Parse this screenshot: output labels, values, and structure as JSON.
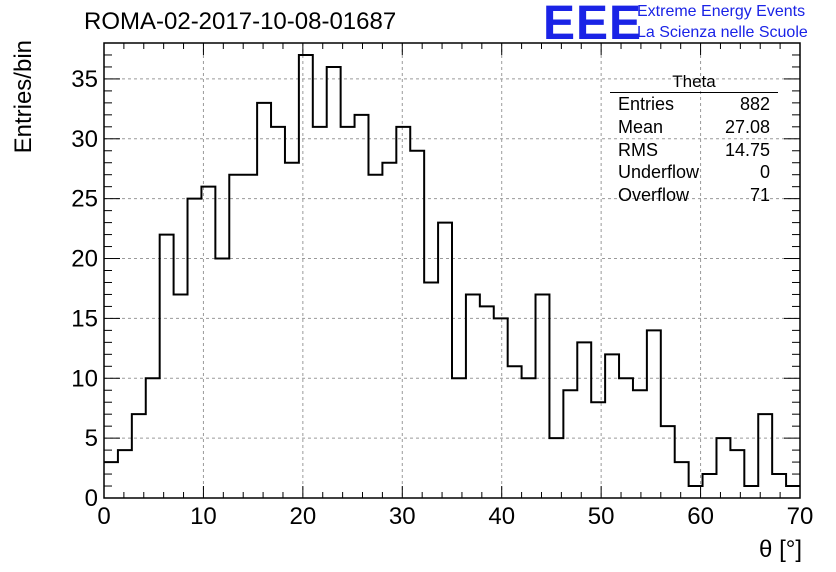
{
  "chart_data": {
    "type": "bar",
    "title": "ROMA-02-2017-10-08-01687",
    "xlabel": "θ [°]",
    "ylabel": "Entries/bin",
    "xlim": [
      0,
      70
    ],
    "ylim": [
      0,
      38
    ],
    "bin_width": 1.4,
    "x_ticks": [
      0,
      10,
      20,
      30,
      40,
      50,
      60,
      70
    ],
    "y_ticks": [
      0,
      5,
      10,
      15,
      20,
      25,
      30,
      35
    ],
    "grid": true,
    "values": [
      3,
      4,
      7,
      10,
      22,
      17,
      25,
      26,
      20,
      27,
      27,
      33,
      31,
      28,
      37,
      31,
      36,
      31,
      32,
      27,
      28,
      31,
      29,
      18,
      23,
      10,
      17,
      16,
      15,
      11,
      10,
      17,
      5,
      9,
      13,
      8,
      12,
      10,
      9,
      14,
      6,
      3,
      1,
      2,
      5,
      4,
      1,
      7,
      2,
      1
    ]
  },
  "stats_box": {
    "title": "Theta",
    "rows": [
      {
        "label": "Entries",
        "value": "882"
      },
      {
        "label": "Mean",
        "value": "27.08"
      },
      {
        "label": "RMS",
        "value": "14.75"
      },
      {
        "label": "Underflow",
        "value": "0"
      },
      {
        "label": "Overflow",
        "value": "71"
      }
    ]
  },
  "logo": {
    "mark": "EEE",
    "line1": "Extreme Energy Events",
    "line2": "La Scienza nelle Scuole",
    "color": "#1a23e6"
  }
}
